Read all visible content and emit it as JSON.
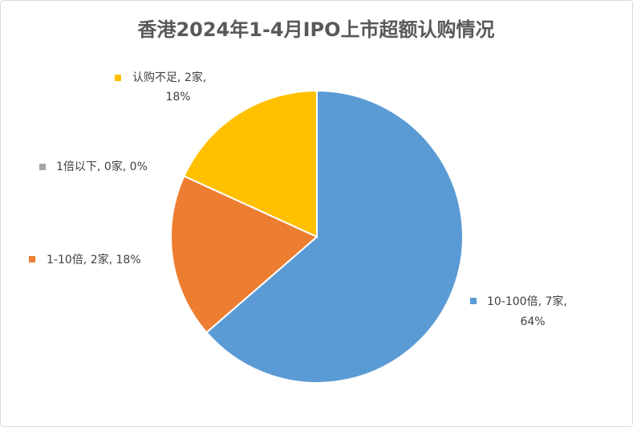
{
  "chart_data": {
    "type": "pie",
    "title": "香港2024年1-4月IPO上市超额认购情况",
    "categories": [
      "10-100倍",
      "1-10倍",
      "1倍以下",
      "认购不足"
    ],
    "values": [
      7,
      2,
      0,
      2
    ],
    "value_labels": [
      "7家",
      "2家",
      "0家",
      "2家"
    ],
    "percentages": [
      64,
      18,
      0,
      18
    ],
    "percentage_labels": [
      "64%",
      "18%",
      "0%",
      "18%"
    ],
    "label_separator": ", ",
    "colors": [
      "#5b9bd5",
      "#ed7d31",
      "#a5a5a5",
      "#ffc000"
    ]
  }
}
